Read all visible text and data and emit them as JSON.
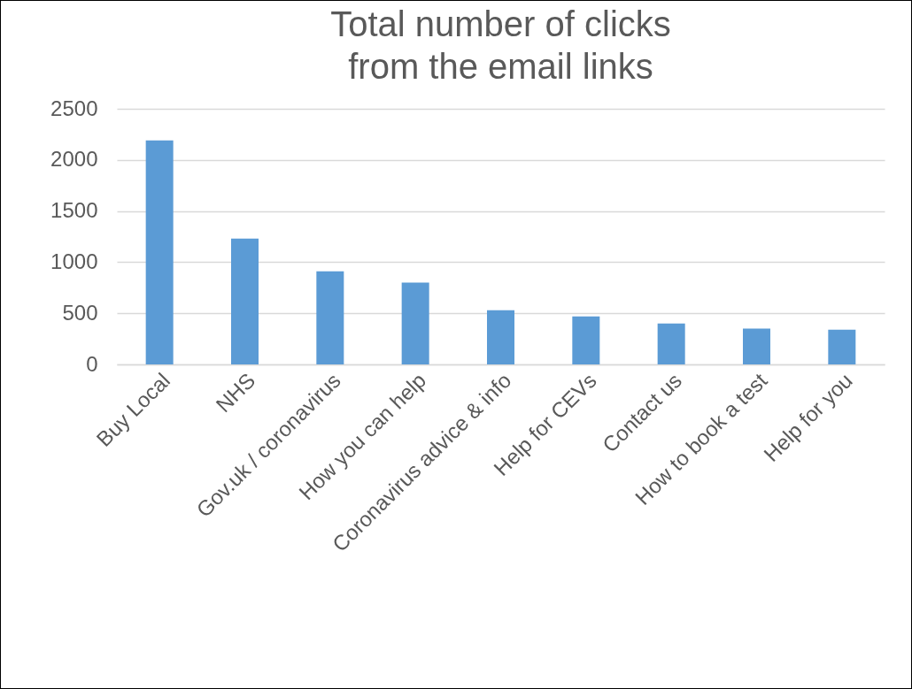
{
  "chart_data": {
    "type": "bar",
    "title": "Total number of clicks\nfrom the email links",
    "categories": [
      "Buy Local",
      "NHS",
      "Gov.uk / coronavirus",
      "How you can help",
      "Coronavirus advice & info",
      "Help for CEVs",
      "Contact us",
      "How to book a test",
      "Help for you"
    ],
    "values": [
      2190,
      1230,
      910,
      800,
      530,
      470,
      400,
      350,
      340
    ],
    "color": "#5b9bd5",
    "ylim": [
      0,
      2500
    ],
    "yticks": [
      0,
      500,
      1000,
      1500,
      2000,
      2500
    ],
    "grid": "y"
  }
}
